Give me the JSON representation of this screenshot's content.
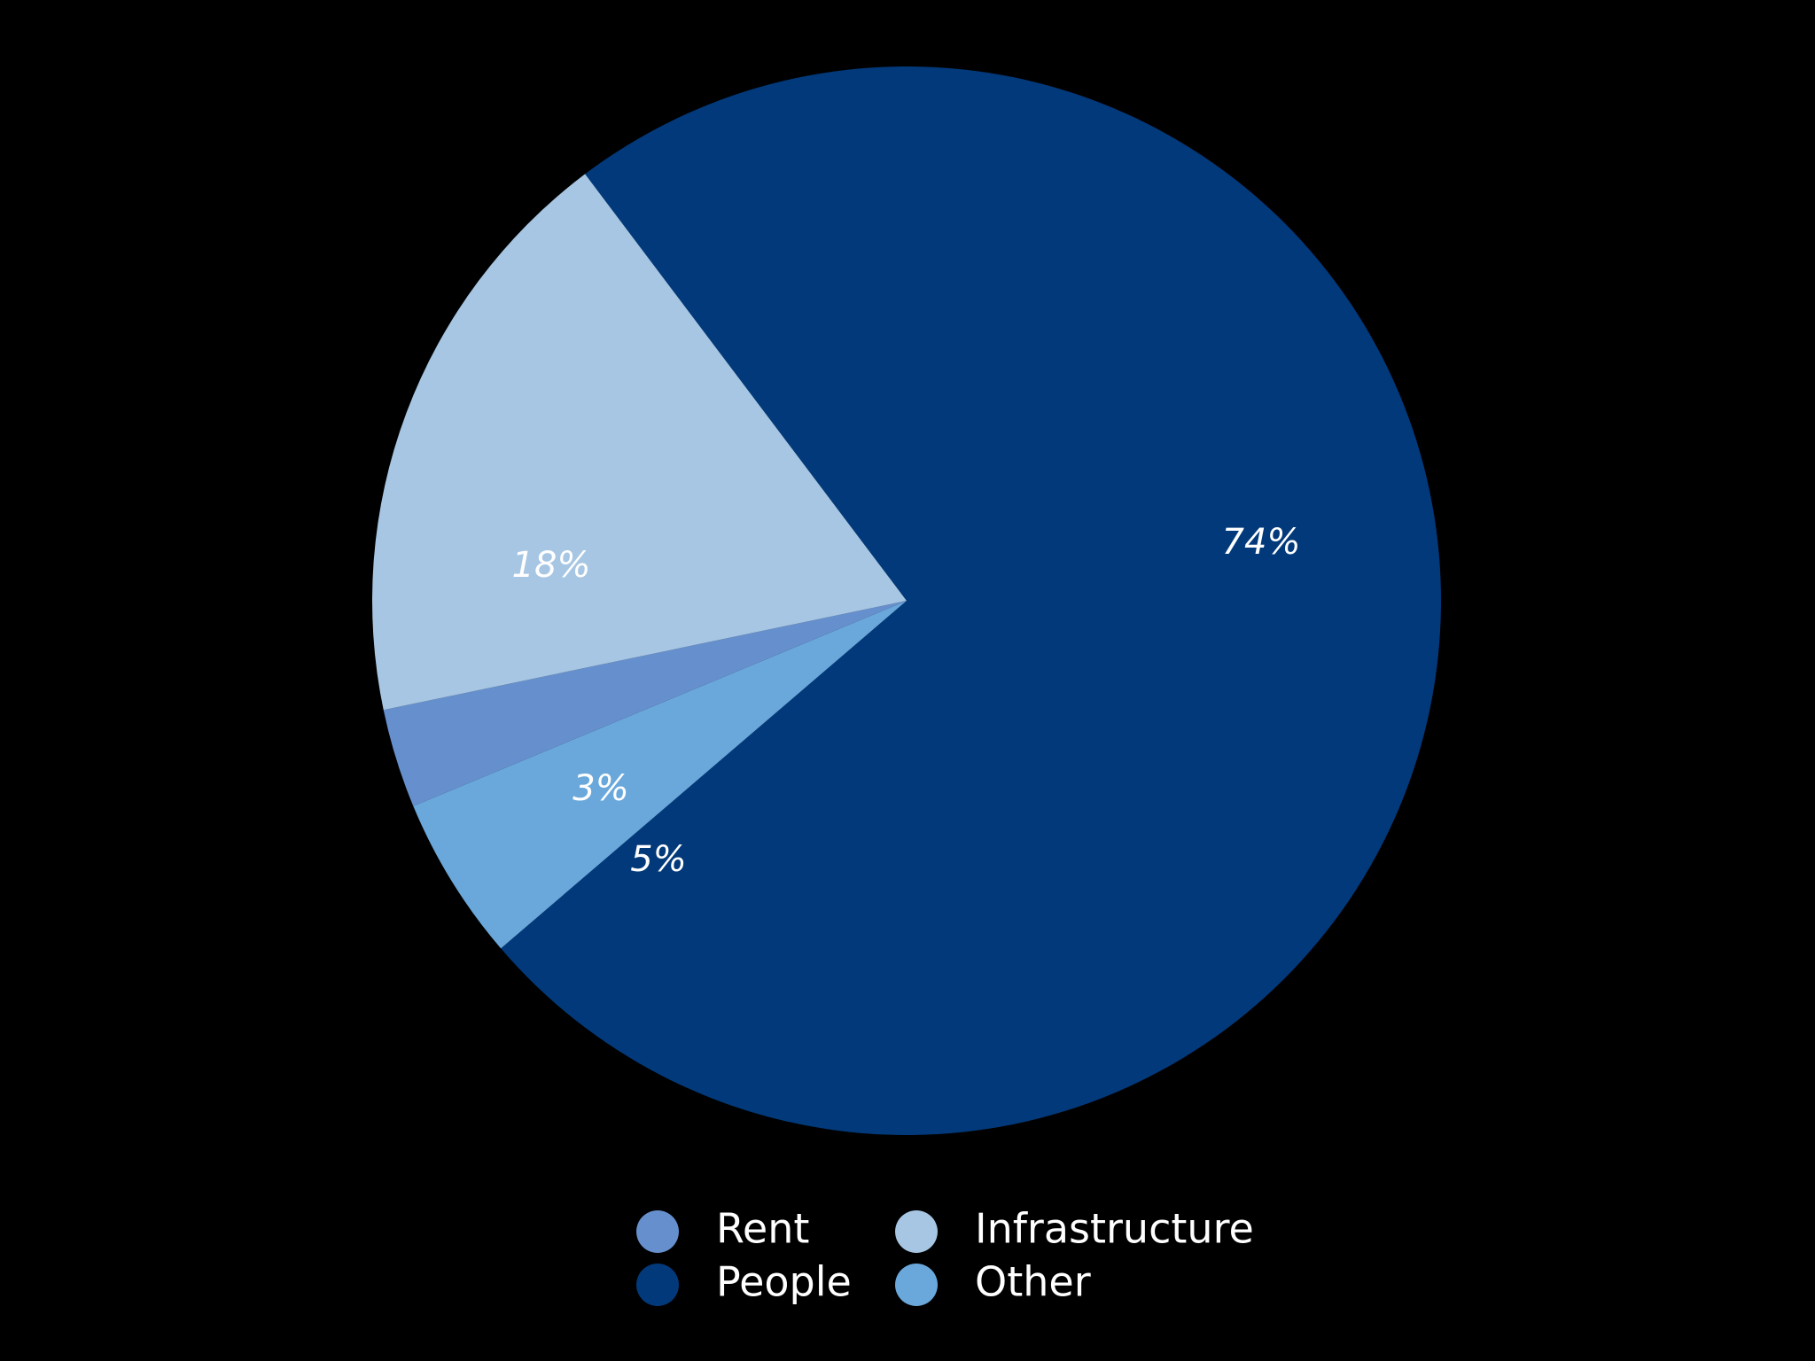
{
  "chart_data": {
    "type": "pie",
    "slices": [
      {
        "name": "People",
        "value": 74,
        "label": "74%",
        "color": "#02397A"
      },
      {
        "name": "Other",
        "value": 5,
        "label": "5%",
        "color": "#6AA8DB"
      },
      {
        "name": "Rent",
        "value": 3,
        "label": "3%",
        "color": "#6690CD"
      },
      {
        "name": "Infrastructure",
        "value": 18,
        "label": "18%",
        "color": "#A7C6E3"
      }
    ],
    "legend": {
      "placement": "bottom",
      "items": [
        {
          "name": "Rent",
          "color": "#6690CD"
        },
        {
          "name": "Infrastructure",
          "color": "#A7C6E3"
        },
        {
          "name": "People",
          "color": "#02397A"
        },
        {
          "name": "Other",
          "color": "#6AA8DB"
        }
      ]
    },
    "background": "#000000"
  }
}
